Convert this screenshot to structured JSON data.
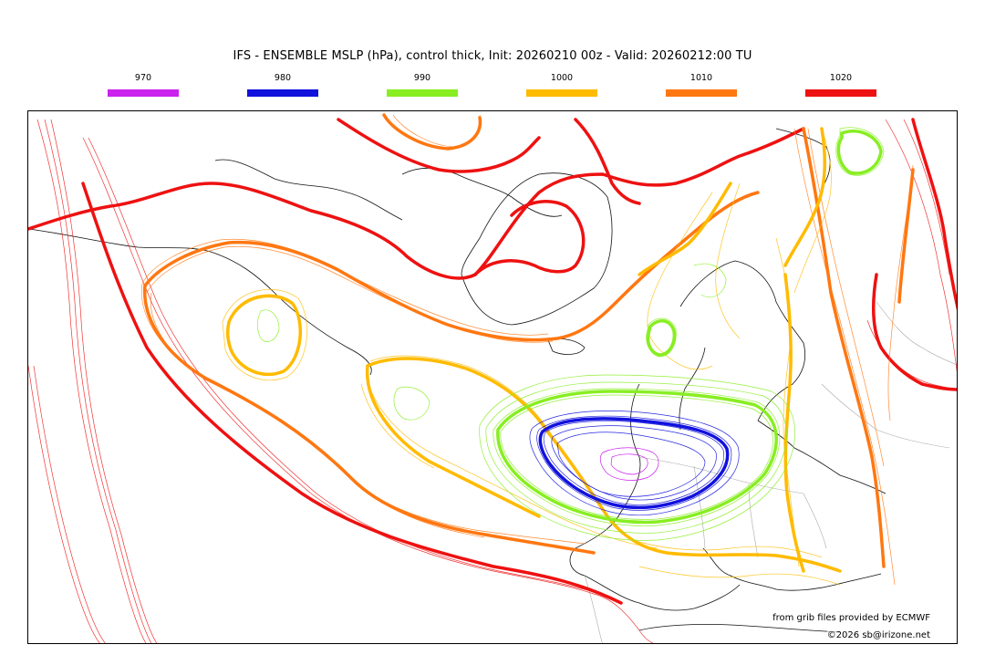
{
  "title": "IFS - ENSEMBLE MSLP (hPa), control thick, Init: 20260210 00z - Valid: 20260212:00 TU",
  "legend": [
    {
      "label": "970",
      "color": "#cc22ee"
    },
    {
      "label": "980",
      "color": "#1111dd"
    },
    {
      "label": "990",
      "color": "#88ee22"
    },
    {
      "label": "1000",
      "color": "#ffbb00"
    },
    {
      "label": "1010",
      "color": "#ff7711"
    },
    {
      "label": "1020",
      "color": "#ee1111"
    }
  ],
  "credits": {
    "provider": "from grib files provided by ECMWF",
    "copyright": "©2026 sb@irizone.net"
  }
}
